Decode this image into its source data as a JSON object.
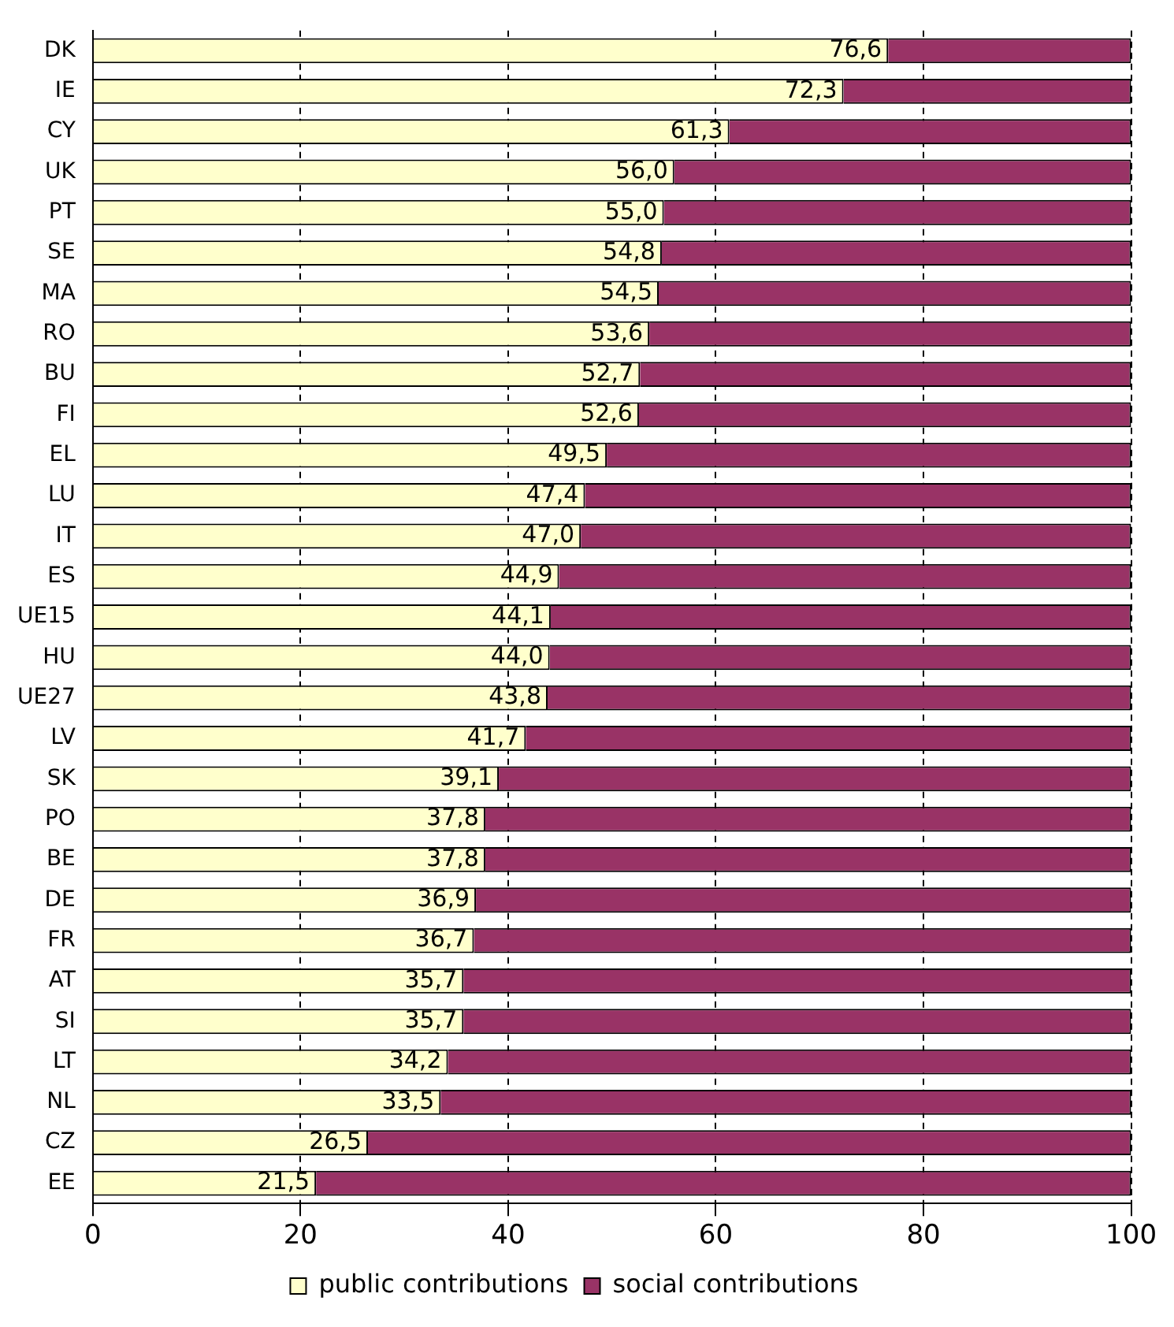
{
  "chart_data": {
    "type": "bar",
    "orientation": "horizontal",
    "stacked": true,
    "categories": [
      "DK",
      "IE",
      "CY",
      "UK",
      "PT",
      "SE",
      "MA",
      "RO",
      "BU",
      "FI",
      "EL",
      "LU",
      "IT",
      "ES",
      "UE15",
      "HU",
      "UE27",
      "LV",
      "SK",
      "PO",
      "BE",
      "DE",
      "FR",
      "AT",
      "SI",
      "LT",
      "NL",
      "CZ",
      "EE"
    ],
    "series": [
      {
        "name": "public contributions",
        "color": "#ffffcc",
        "values": [
          76.6,
          72.3,
          61.3,
          56.0,
          55.0,
          54.8,
          54.5,
          53.6,
          52.7,
          52.6,
          49.5,
          47.4,
          47.0,
          44.9,
          44.1,
          44.0,
          43.8,
          41.7,
          39.1,
          37.8,
          37.8,
          36.9,
          36.7,
          35.7,
          35.7,
          34.2,
          33.5,
          26.5,
          21.5
        ],
        "value_labels": [
          "76,6",
          "72,3",
          "61,3",
          "56,0",
          "55,0",
          "54,8",
          "54,5",
          "53,6",
          "52,7",
          "52,6",
          "49,5",
          "47,4",
          "47,0",
          "44,9",
          "44,1",
          "44,0",
          "43,8",
          "41,7",
          "39,1",
          "37,8",
          "37,8",
          "36,9",
          "36,7",
          "35,7",
          "35,7",
          "34,2",
          "33,5",
          "26,5",
          "21,5"
        ]
      },
      {
        "name": "social contributions",
        "color": "#993366",
        "values": [
          23.4,
          27.7,
          38.7,
          44.0,
          45.0,
          45.2,
          45.5,
          46.4,
          47.3,
          47.4,
          50.5,
          52.6,
          53.0,
          55.1,
          55.9,
          56.0,
          56.2,
          58.3,
          60.9,
          62.2,
          62.2,
          63.1,
          63.3,
          64.3,
          64.3,
          65.8,
          66.5,
          73.5,
          78.5
        ]
      }
    ],
    "xlim": [
      0,
      100
    ],
    "xticks": [
      0,
      20,
      40,
      60,
      80,
      100
    ],
    "grid": "x",
    "legend": "bottom"
  }
}
